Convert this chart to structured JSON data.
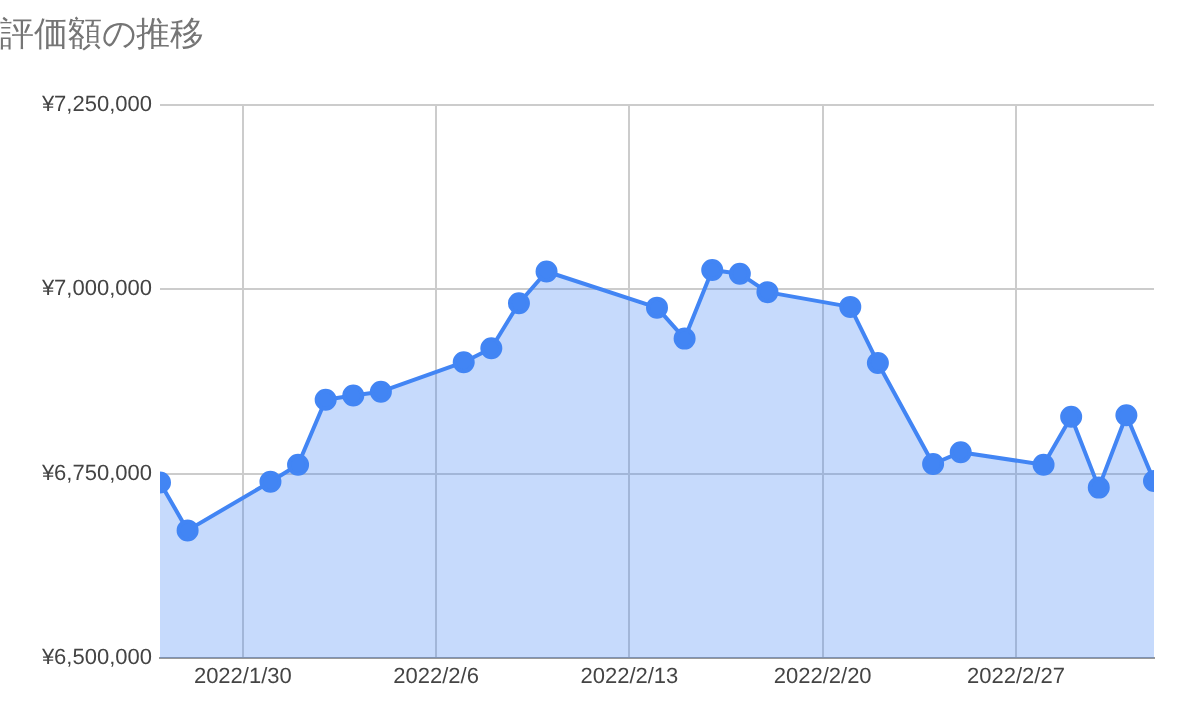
{
  "chart_data": {
    "type": "area",
    "title": "評価額の推移",
    "x": [
      "2022-01-27",
      "2022-01-28",
      "2022-01-31",
      "2022-02-01",
      "2022-02-02",
      "2022-02-03",
      "2022-02-04",
      "2022-02-07",
      "2022-02-08",
      "2022-02-09",
      "2022-02-10",
      "2022-02-14",
      "2022-02-15",
      "2022-02-16",
      "2022-02-17",
      "2022-02-18",
      "2022-02-21",
      "2022-02-22",
      "2022-02-24",
      "2022-02-25",
      "2022-02-28",
      "2022-03-01",
      "2022-03-02",
      "2022-03-03",
      "2022-03-04"
    ],
    "series": [
      {
        "color": "#4285f4",
        "values": [
          6738000,
          6673000,
          6739000,
          6762000,
          6850000,
          6856000,
          6861000,
          6901000,
          6920000,
          6981000,
          7024000,
          6975000,
          6933000,
          7026000,
          7021000,
          6996000,
          6976000,
          6900000,
          6763000,
          6779000,
          6762000,
          6827000,
          6731000,
          6829000,
          6740000
        ]
      }
    ],
    "xlim": [
      "2022-01-27",
      "2022-03-04"
    ],
    "xticks": [
      {
        "value": "2022-01-30",
        "label": "2022/1/30"
      },
      {
        "value": "2022-02-06",
        "label": "2022/2/6"
      },
      {
        "value": "2022-02-13",
        "label": "2022/2/13"
      },
      {
        "value": "2022-02-20",
        "label": "2022/2/20"
      },
      {
        "value": "2022-02-27",
        "label": "2022/2/27"
      }
    ],
    "ylim": [
      6500000,
      7250000
    ],
    "yticks": [
      {
        "value": 6500000,
        "label": "¥6,500,000"
      },
      {
        "value": 6750000,
        "label": "¥6,750,000"
      },
      {
        "value": 7000000,
        "label": "¥7,000,000"
      },
      {
        "value": 7250000,
        "label": "¥7,250,000"
      }
    ],
    "grid": true,
    "legend": false,
    "marker": "circle",
    "line_style": "solid"
  }
}
